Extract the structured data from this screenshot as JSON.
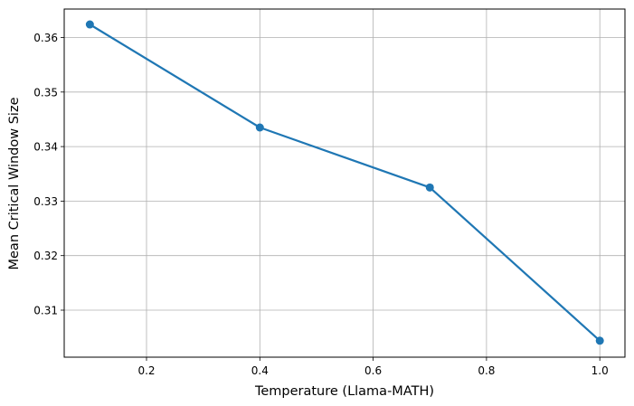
{
  "chart_data": {
    "type": "line",
    "title": "",
    "xlabel": "Temperature (Llama-MATH)",
    "ylabel": "Mean Critical Window Size",
    "x": [
      0.1,
      0.4,
      0.7,
      1.0
    ],
    "series": [
      {
        "name": "Mean Critical Window Size",
        "values": [
          0.3624,
          0.3435,
          0.3325,
          0.3044
        ],
        "color": "#1f77b4",
        "marker": "circle"
      }
    ],
    "xlim": [
      0.055,
      1.045
    ],
    "ylim": [
      0.3013,
      0.3655
    ],
    "xticks": [
      0.2,
      0.4,
      0.6,
      0.8,
      1.0
    ],
    "xtick_labels": [
      "0.2",
      "0.4",
      "0.6",
      "0.8",
      "1.0"
    ],
    "yticks": [
      0.31,
      0.32,
      0.33,
      0.34,
      0.35,
      0.36
    ],
    "ytick_labels": [
      "0.31",
      "0.32",
      "0.33",
      "0.34",
      "0.35",
      "0.36"
    ],
    "grid": true,
    "legend": null
  }
}
